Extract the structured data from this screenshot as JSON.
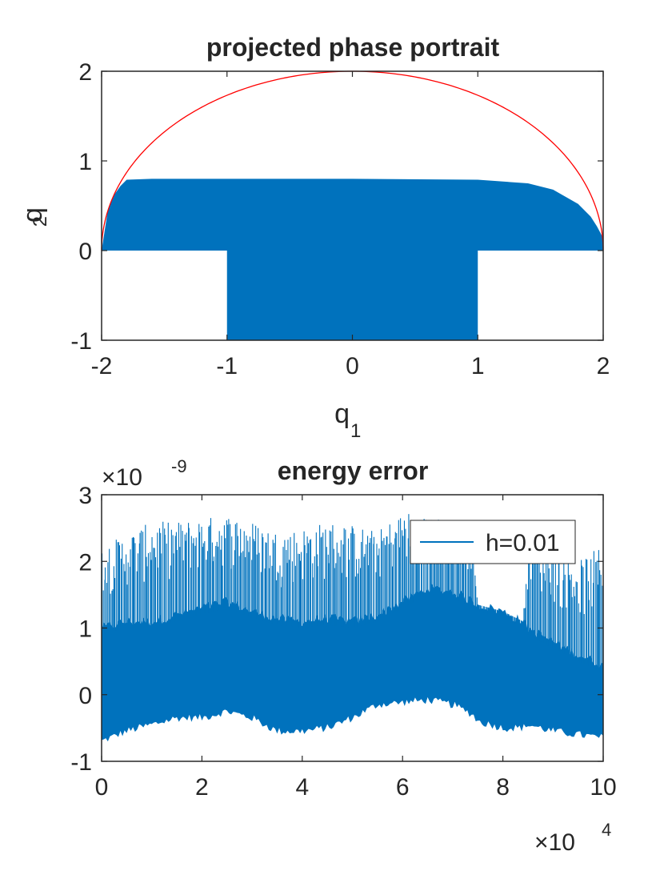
{
  "colors": {
    "fill": "#0072BD",
    "circle": "#FF0000",
    "axis": "#262626"
  },
  "chart_data": [
    {
      "type": "area",
      "title": "projected phase portrait",
      "xlabel": "q",
      "xlabel_sub": "1",
      "ylabel": "q",
      "ylabel_sub": "2",
      "xlim": [
        -2,
        2
      ],
      "ylim": [
        -1,
        2
      ],
      "xticks": [
        -2,
        -1,
        0,
        1,
        2
      ],
      "xtick_labels": [
        "-2",
        "-1",
        "0",
        "1",
        "2"
      ],
      "yticks": [
        -1,
        0,
        1,
        2
      ],
      "ytick_labels": [
        "-1",
        "0",
        "1",
        "2"
      ],
      "series": [
        {
          "kind": "curve",
          "equation": "q1^2/4 + q2^2/4 = 1, q2 >= 0",
          "x": [
            -2,
            -1.8,
            -1.5,
            -1,
            -0.5,
            0,
            0.5,
            1,
            1.5,
            1.8,
            2
          ],
          "y": [
            0,
            0.87,
            1.32,
            1.73,
            1.94,
            2,
            1.94,
            1.73,
            1.32,
            0.87,
            0
          ]
        },
        {
          "kind": "band_upper",
          "x": [
            -2,
            -1.95,
            -1.9,
            -1.85,
            -1.8,
            -1.6,
            -1,
            0,
            1,
            1.4,
            1.6,
            1.8,
            1.9,
            1.95,
            2
          ],
          "y": [
            0,
            0.45,
            0.62,
            0.72,
            0.79,
            0.8,
            0.8,
            0.8,
            0.79,
            0.75,
            0.68,
            0.52,
            0.38,
            0.27,
            0.14
          ]
        },
        {
          "kind": "band_lower_region",
          "x": [
            -1,
            1
          ],
          "y": [
            -1,
            0
          ]
        }
      ]
    },
    {
      "type": "area",
      "title": "energy error",
      "y_exponent_base": "×10",
      "y_exponent_power": "-9",
      "x_exponent_base": "×10",
      "x_exponent_power": "4",
      "xlim": [
        0,
        10
      ],
      "ylim": [
        -1,
        3
      ],
      "xticks": [
        0,
        2,
        4,
        6,
        8,
        10
      ],
      "xtick_labels": [
        "0",
        "2",
        "4",
        "6",
        "8",
        "10"
      ],
      "yticks": [
        -1,
        0,
        1,
        2,
        3
      ],
      "ytick_labels": [
        "-1",
        "0",
        "1",
        "2",
        "3"
      ],
      "legend": {
        "location": "top-right",
        "entries": [
          "h=0.01"
        ]
      },
      "series": [
        {
          "name": "h=0.01",
          "x": [
            0,
            0.5,
            1,
            1.5,
            2,
            2.5,
            3,
            3.5,
            4,
            4.5,
            5,
            5.5,
            6,
            6.5,
            7,
            7.4,
            7.5,
            8,
            8.4,
            8.5,
            9,
            9.5,
            10
          ],
          "lower": [
            -0.7,
            -0.55,
            -0.45,
            -0.35,
            -0.35,
            -0.25,
            -0.35,
            -0.55,
            -0.55,
            -0.5,
            -0.35,
            -0.15,
            -0.12,
            -0.08,
            -0.15,
            -0.3,
            -0.4,
            -0.5,
            -0.5,
            -0.45,
            -0.55,
            -0.6,
            -0.65
          ],
          "upper_envelope": [
            2.25,
            2.4,
            2.6,
            2.6,
            2.65,
            2.7,
            2.6,
            2.45,
            2.5,
            2.6,
            2.55,
            2.45,
            2.75,
            2.7,
            2.6,
            2.35,
            1.35,
            1.25,
            1.1,
            2.6,
            2.25,
            2.0,
            2.25
          ],
          "solid_top": [
            1.0,
            1.1,
            1.1,
            1.2,
            1.3,
            1.4,
            1.25,
            1.15,
            1.1,
            1.15,
            1.1,
            1.2,
            1.4,
            1.6,
            1.55,
            1.4,
            1.35,
            1.25,
            1.1,
            1.0,
            0.8,
            0.6,
            0.45
          ]
        }
      ]
    }
  ]
}
